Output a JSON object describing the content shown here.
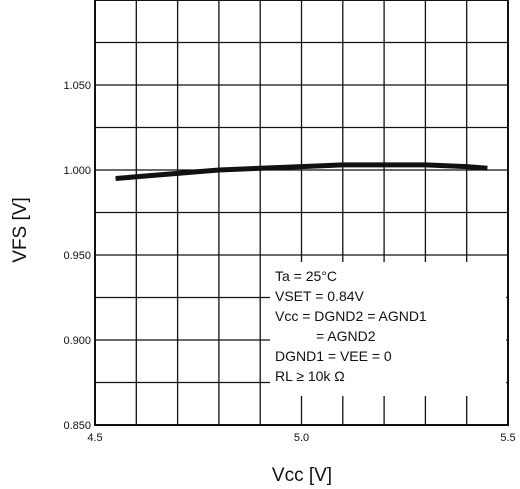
{
  "chart_data": {
    "type": "line",
    "xlabel": "Vcc [V]",
    "ylabel": "VFS [V]",
    "xlim": [
      4.5,
      5.5
    ],
    "ylim": [
      0.85,
      1.1
    ],
    "x_ticks": [
      "4.5",
      "5.0",
      "5.5"
    ],
    "y_ticks": [
      "0.850",
      "0.900",
      "0.950",
      "1.000",
      "1.050"
    ],
    "grid": true,
    "series": [
      {
        "x": [
          4.55,
          4.6,
          4.7,
          4.8,
          4.9,
          5.0,
          5.1,
          5.2,
          5.3,
          5.4,
          5.45
        ],
        "y": [
          0.995,
          0.996,
          0.998,
          1.0,
          1.001,
          1.002,
          1.003,
          1.003,
          1.003,
          1.002,
          1.001
        ]
      }
    ],
    "annotation": [
      "Ta = 25°C",
      "VSET = 0.84V",
      "Vcc = DGND2 = AGND1",
      "= AGND2",
      "DGND1 = VEE = 0",
      "RL ≥ 10k Ω"
    ]
  }
}
